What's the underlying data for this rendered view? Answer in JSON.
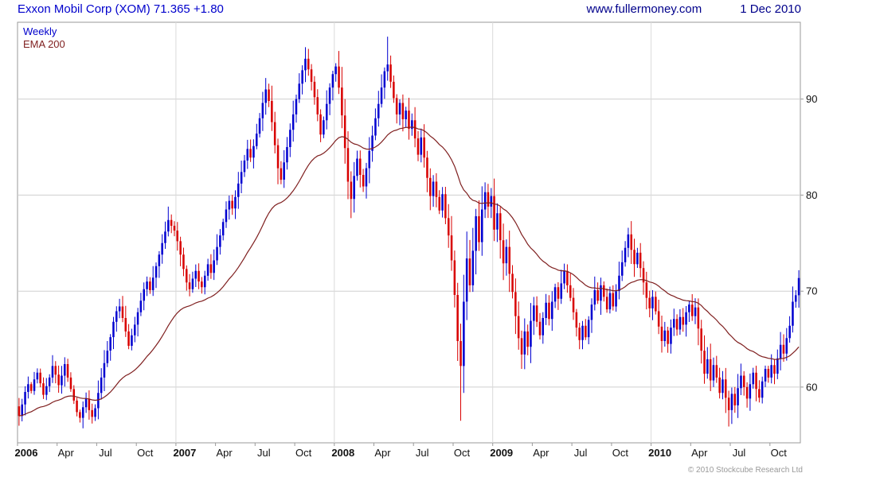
{
  "header": {
    "title": "Exxon Mobil Corp (XOM) 71.365 +1.80",
    "website": "www.fullermoney.com",
    "date": "1 Dec 2010"
  },
  "legend": {
    "weekly": "Weekly",
    "ema": "EMA 200"
  },
  "footer": {
    "copyright": "© 2010 Stockcube Research Ltd"
  },
  "colors": {
    "title": "#0000cc",
    "header_right": "#00008b",
    "weekly_label": "#0000cc",
    "ema_label": "#7f1f1f",
    "copyright": "#999999"
  },
  "chart_data": {
    "type": "candlestick",
    "title": "Exxon Mobil Corp (XOM)",
    "interval": "Weekly",
    "last_close": 71.365,
    "change": "+1.80",
    "as_of": "1 Dec 2010",
    "overlay": "EMA 200",
    "ema_period_weeks": 40,
    "first_open": 58.0,
    "y_axis": {
      "ticks": [
        60,
        70,
        80,
        90
      ],
      "min": 54.2,
      "max": 98.0
    },
    "x_ticks": [
      {
        "label": "2006",
        "week": 0,
        "year": true
      },
      {
        "label": "Apr",
        "week": 13,
        "year": false
      },
      {
        "label": "Jul",
        "week": 26,
        "year": false
      },
      {
        "label": "Oct",
        "week": 39,
        "year": false
      },
      {
        "label": "2007",
        "week": 52,
        "year": true
      },
      {
        "label": "Apr",
        "week": 65,
        "year": false
      },
      {
        "label": "Jul",
        "week": 78,
        "year": false
      },
      {
        "label": "Oct",
        "week": 91,
        "year": false
      },
      {
        "label": "2008",
        "week": 104,
        "year": true
      },
      {
        "label": "Apr",
        "week": 117,
        "year": false
      },
      {
        "label": "Jul",
        "week": 130,
        "year": false
      },
      {
        "label": "Oct",
        "week": 143,
        "year": false
      },
      {
        "label": "2009",
        "week": 156,
        "year": true
      },
      {
        "label": "Apr",
        "week": 169,
        "year": false
      },
      {
        "label": "Jul",
        "week": 182,
        "year": false
      },
      {
        "label": "Oct",
        "week": 195,
        "year": false
      },
      {
        "label": "2010",
        "week": 208,
        "year": true
      },
      {
        "label": "Apr",
        "week": 221,
        "year": false
      },
      {
        "label": "Jul",
        "week": 234,
        "year": false
      },
      {
        "label": "Oct",
        "week": 247,
        "year": false
      }
    ],
    "closes": [
      57.0,
      58.2,
      59.5,
      60.3,
      59.6,
      60.8,
      61.5,
      60.4,
      59.2,
      60.1,
      61.0,
      62.2,
      61.3,
      60.2,
      61.2,
      62.4,
      61.0,
      59.8,
      58.6,
      57.4,
      56.8,
      57.9,
      58.8,
      57.6,
      56.9,
      57.8,
      59.4,
      61.0,
      62.5,
      63.8,
      65.2,
      66.8,
      67.9,
      68.4,
      67.2,
      65.8,
      64.3,
      65.4,
      66.5,
      67.8,
      69.0,
      70.2,
      71.0,
      70.1,
      71.4,
      72.6,
      73.8,
      75.0,
      76.2,
      77.4,
      76.8,
      76.3,
      75.2,
      73.8,
      72.3,
      70.9,
      70.2,
      71.3,
      72.1,
      71.0,
      70.4,
      71.6,
      72.8,
      71.9,
      73.2,
      74.6,
      75.8,
      77.2,
      78.5,
      79.4,
      78.6,
      79.8,
      81.2,
      82.4,
      83.6,
      84.8,
      83.9,
      85.1,
      86.4,
      88.0,
      89.6,
      91.0,
      89.8,
      87.6,
      85.2,
      82.8,
      81.6,
      83.4,
      85.0,
      86.8,
      88.4,
      90.0,
      91.6,
      93.0,
      94.2,
      93.1,
      91.8,
      90.2,
      88.4,
      86.3,
      87.8,
      89.5,
      91.2,
      92.6,
      93.4,
      91.2,
      88.3,
      84.9,
      81.4,
      79.6,
      82.0,
      83.8,
      82.1,
      80.9,
      82.8,
      84.6,
      86.2,
      88.0,
      89.5,
      91.2,
      92.9,
      93.6,
      91.8,
      90.1,
      88.4,
      89.6,
      87.9,
      88.8,
      86.9,
      87.8,
      85.9,
      84.2,
      86.0,
      83.9,
      81.8,
      79.9,
      81.4,
      79.8,
      78.4,
      80.1,
      77.6,
      75.8,
      73.2,
      69.6,
      64.8,
      62.2,
      68.9,
      73.4,
      70.6,
      74.2,
      77.8,
      75.1,
      78.5,
      80.3,
      78.8,
      79.9,
      76.4,
      78.1,
      75.3,
      72.9,
      74.6,
      71.8,
      69.9,
      67.4,
      65.1,
      63.4,
      65.8,
      64.2,
      66.9,
      68.5,
      66.8,
      65.4,
      67.2,
      68.8,
      67.1,
      68.9,
      70.4,
      69.2,
      70.8,
      72.1,
      70.6,
      69.3,
      67.8,
      66.2,
      64.9,
      66.4,
      65.2,
      67.0,
      68.6,
      70.1,
      69.0,
      70.6,
      69.4,
      68.1,
      69.8,
      68.4,
      70.0,
      71.6,
      73.0,
      74.5,
      75.9,
      74.3,
      72.8,
      74.0,
      72.4,
      70.9,
      69.3,
      68.2,
      69.4,
      67.9,
      66.3,
      64.8,
      65.9,
      64.5,
      66.2,
      67.1,
      66.0,
      67.3,
      66.5,
      67.8,
      68.6,
      67.4,
      68.3,
      66.1,
      63.8,
      61.4,
      62.9,
      60.7,
      62.3,
      61.0,
      59.4,
      60.8,
      58.9,
      57.6,
      59.3,
      58.1,
      59.9,
      61.2,
      60.0,
      58.8,
      60.3,
      61.5,
      59.8,
      58.9,
      60.6,
      61.9,
      61.0,
      62.3,
      61.4,
      63.0,
      64.4,
      63.5,
      65.1,
      66.4,
      68.9,
      69.57,
      71.365
    ],
    "extreme_overrides": {
      "24": {
        "low": 56.2
      },
      "49": {
        "high": 78.8
      },
      "81": {
        "high": 92.2
      },
      "94": {
        "high": 95.4
      },
      "109": {
        "low": 77.6
      },
      "121": {
        "high": 96.5
      },
      "145": {
        "low": 56.5
      },
      "165": {
        "low": 61.9
      },
      "200": {
        "high": 76.6
      },
      "211": {
        "low": 63.6
      },
      "233": {
        "low": 55.9
      }
    },
    "colors": {
      "up": "#0000d0",
      "down": "#d80000",
      "ema": "#7f1f1f",
      "grid": "#cfcfcf",
      "grid_v": "#dadada",
      "border": "#9a9a9a",
      "axis_text": "#111111"
    }
  }
}
